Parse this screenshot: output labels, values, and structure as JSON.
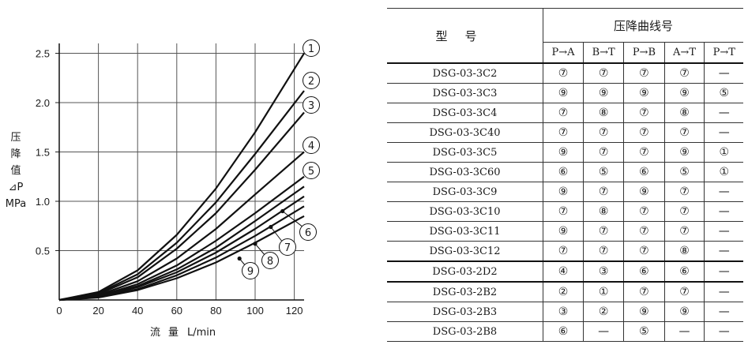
{
  "chart_data": {
    "type": "line",
    "ylabel": "压\n降\n值\n⊿P\nMPa",
    "ylabel_lines": [
      "压",
      "降",
      "值",
      "⊿P",
      "MPa"
    ],
    "xlabel_cn": "流量",
    "xlabel_unit": "L/min",
    "xlim": [
      0,
      125
    ],
    "ylim": [
      0,
      2.6
    ],
    "xticks": [
      "0",
      "20",
      "40",
      "60",
      "80",
      "100",
      "120"
    ],
    "xtick_values": [
      0,
      20,
      40,
      60,
      80,
      100,
      120
    ],
    "yticks": [
      "0.5",
      "1.0",
      "1.5",
      "2.0",
      "2.5"
    ],
    "ytick_values": [
      0.5,
      1.0,
      1.5,
      2.0,
      2.5
    ],
    "grid": true,
    "series": [
      {
        "label": "1",
        "x": [
          0,
          20,
          40,
          60,
          80,
          100,
          125
        ],
        "y": [
          0,
          0.08,
          0.3,
          0.66,
          1.13,
          1.7,
          2.5
        ],
        "end_x": 125
      },
      {
        "label": "2",
        "x": [
          0,
          20,
          40,
          60,
          80,
          100,
          125
        ],
        "y": [
          0,
          0.07,
          0.26,
          0.58,
          0.99,
          1.48,
          2.12
        ],
        "end_x": 125
      },
      {
        "label": "3",
        "x": [
          0,
          20,
          40,
          60,
          80,
          100,
          125
        ],
        "y": [
          0,
          0.06,
          0.23,
          0.52,
          0.88,
          1.32,
          1.9
        ],
        "end_x": 125
      },
      {
        "label": "4",
        "x": [
          0,
          20,
          40,
          60,
          80,
          100,
          125
        ],
        "y": [
          0,
          0.05,
          0.19,
          0.42,
          0.72,
          1.07,
          1.5
        ],
        "end_x": 125
      },
      {
        "label": "5",
        "x": [
          0,
          20,
          40,
          60,
          80,
          100,
          125
        ],
        "y": [
          0,
          0.04,
          0.16,
          0.35,
          0.6,
          0.88,
          1.25
        ],
        "end_x": 125
      },
      {
        "label": "6",
        "x": [
          0,
          20,
          40,
          60,
          80,
          100,
          125
        ],
        "y": [
          0,
          0.035,
          0.14,
          0.31,
          0.53,
          0.8,
          1.15
        ],
        "end_x": 125
      },
      {
        "label": "7",
        "x": [
          0,
          20,
          40,
          60,
          80,
          100,
          125
        ],
        "y": [
          0,
          0.032,
          0.13,
          0.28,
          0.48,
          0.72,
          1.05
        ],
        "end_x": 125
      },
      {
        "label": "8",
        "x": [
          0,
          20,
          40,
          60,
          80,
          100,
          125
        ],
        "y": [
          0,
          0.028,
          0.11,
          0.25,
          0.43,
          0.65,
          0.95
        ],
        "end_x": 125
      },
      {
        "label": "9",
        "x": [
          0,
          20,
          40,
          60,
          80,
          100,
          125
        ],
        "y": [
          0,
          0.025,
          0.1,
          0.22,
          0.38,
          0.58,
          0.85
        ],
        "end_x": 125
      }
    ],
    "markers": [
      {
        "series": "6",
        "x": 114,
        "y": 0.9
      },
      {
        "series": "7",
        "x": 108,
        "y": 0.74
      },
      {
        "series": "8",
        "x": 100,
        "y": 0.57
      },
      {
        "series": "9",
        "x": 92,
        "y": 0.42
      }
    ]
  },
  "table": {
    "model_header": "型号",
    "group_header": "压降曲线号",
    "directions": [
      "P→A",
      "B→T",
      "P→B",
      "A→T",
      "P→T"
    ],
    "rows": [
      {
        "model": "DSG-03-3C2",
        "values": [
          "⑦",
          "⑦",
          "⑦",
          "⑦",
          "—"
        ],
        "sep": false
      },
      {
        "model": "DSG-03-3C3",
        "values": [
          "⑨",
          "⑨",
          "⑨",
          "⑨",
          "⑤"
        ],
        "sep": false
      },
      {
        "model": "DSG-03-3C4",
        "values": [
          "⑦",
          "⑧",
          "⑦",
          "⑧",
          "—"
        ],
        "sep": false
      },
      {
        "model": "DSG-03-3C40",
        "values": [
          "⑦",
          "⑦",
          "⑦",
          "⑦",
          "—"
        ],
        "sep": false
      },
      {
        "model": "DSG-03-3C5",
        "values": [
          "⑨",
          "⑦",
          "⑦",
          "⑨",
          "①"
        ],
        "sep": false
      },
      {
        "model": "DSG-03-3C60",
        "values": [
          "⑥",
          "⑤",
          "⑥",
          "⑤",
          "①"
        ],
        "sep": false
      },
      {
        "model": "DSG-03-3C9",
        "values": [
          "⑨",
          "⑦",
          "⑨",
          "⑦",
          "—"
        ],
        "sep": false
      },
      {
        "model": "DSG-03-3C10",
        "values": [
          "⑦",
          "⑧",
          "⑦",
          "⑦",
          "—"
        ],
        "sep": false
      },
      {
        "model": "DSG-03-3C11",
        "values": [
          "⑨",
          "⑦",
          "⑦",
          "⑦",
          "—"
        ],
        "sep": false
      },
      {
        "model": "DSG-03-3C12",
        "values": [
          "⑦",
          "⑦",
          "⑦",
          "⑧",
          "—"
        ],
        "sep": false
      },
      {
        "model": "DSG-03-2D2",
        "values": [
          "④",
          "③",
          "⑥",
          "⑥",
          "—"
        ],
        "sep": true
      },
      {
        "model": "DSG-03-2B2",
        "values": [
          "②",
          "①",
          "⑦",
          "⑦",
          "—"
        ],
        "sep": true
      },
      {
        "model": "DSG-03-2B3",
        "values": [
          "③",
          "②",
          "⑨",
          "⑨",
          "—"
        ],
        "sep": false
      },
      {
        "model": "DSG-03-2B8",
        "values": [
          "⑥",
          "—",
          "⑤",
          "—",
          "—"
        ],
        "sep": false
      }
    ]
  }
}
